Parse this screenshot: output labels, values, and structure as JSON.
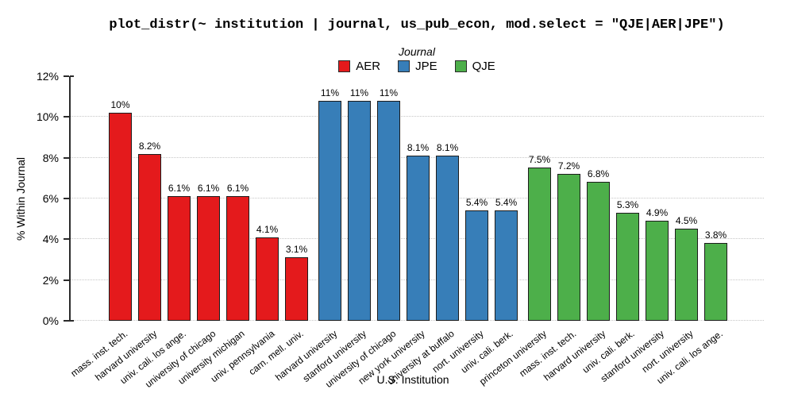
{
  "chart_data": {
    "type": "bar",
    "title": "plot_distr(~ institution | journal, us_pub_econ, mod.select = \"QJE|AER|JPE\")",
    "xlabel": "U.S. Institution",
    "ylabel": "% Within Journal",
    "ylim": [
      0,
      12
    ],
    "yticks": [
      "0%",
      "2%",
      "4%",
      "6%",
      "8%",
      "10%",
      "12%"
    ],
    "ytick_values": [
      0,
      2,
      4,
      6,
      8,
      10,
      12
    ],
    "gridlines_at": [
      0,
      2,
      4,
      6,
      8,
      10
    ],
    "grid_style": "dotted horizontal",
    "legend": {
      "title": "Journal",
      "position": "top-center",
      "entries": [
        {
          "label": "AER",
          "color": "#e41a1c"
        },
        {
          "label": "JPE",
          "color": "#377eb8"
        },
        {
          "label": "QJE",
          "color": "#4daf4a"
        }
      ]
    },
    "groups": [
      {
        "journal": "AER",
        "color": "#e41a1c",
        "bars": [
          {
            "institution": "mass. inst. tech.",
            "value": 10.2,
            "label": "10%"
          },
          {
            "institution": "harvard university",
            "value": 8.2,
            "label": "8.2%"
          },
          {
            "institution": "univ. cali. los ange.",
            "value": 6.1,
            "label": "6.1%"
          },
          {
            "institution": "university of chicago",
            "value": 6.1,
            "label": "6.1%"
          },
          {
            "institution": "university michigan",
            "value": 6.1,
            "label": "6.1%"
          },
          {
            "institution": "univ. pennsylvania",
            "value": 4.1,
            "label": "4.1%"
          },
          {
            "institution": "carn. mell. univ.",
            "value": 3.1,
            "label": "3.1%"
          }
        ]
      },
      {
        "journal": "JPE",
        "color": "#377eb8",
        "bars": [
          {
            "institution": "harvard university",
            "value": 10.8,
            "label": "11%"
          },
          {
            "institution": "stanford university",
            "value": 10.8,
            "label": "11%"
          },
          {
            "institution": "university of chicago",
            "value": 10.8,
            "label": "11%"
          },
          {
            "institution": "new york university",
            "value": 8.1,
            "label": "8.1%"
          },
          {
            "institution": "university at buffalo",
            "value": 8.1,
            "label": "8.1%"
          },
          {
            "institution": "nort. university",
            "value": 5.4,
            "label": "5.4%"
          },
          {
            "institution": "univ. cali. berk.",
            "value": 5.4,
            "label": "5.4%"
          }
        ]
      },
      {
        "journal": "QJE",
        "color": "#4daf4a",
        "bars": [
          {
            "institution": "princeton university",
            "value": 7.5,
            "label": "7.5%"
          },
          {
            "institution": "mass. inst. tech.",
            "value": 7.2,
            "label": "7.2%"
          },
          {
            "institution": "harvard university",
            "value": 6.8,
            "label": "6.8%"
          },
          {
            "institution": "univ. cali. berk.",
            "value": 5.3,
            "label": "5.3%"
          },
          {
            "institution": "stanford university",
            "value": 4.9,
            "label": "4.9%"
          },
          {
            "institution": "nort. university",
            "value": 4.5,
            "label": "4.5%"
          },
          {
            "institution": "univ. cali. los ange.",
            "value": 3.8,
            "label": "3.8%"
          }
        ]
      }
    ]
  }
}
